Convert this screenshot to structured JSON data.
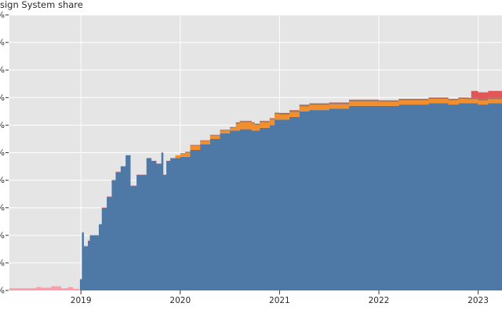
{
  "chart_data": {
    "type": "area",
    "title": "sign System share",
    "xlabel": "",
    "ylabel": "",
    "x_tick_labels": [
      "2019",
      "2020",
      "2021",
      "2022",
      "2023"
    ],
    "x_tick_positions": [
      2019.0,
      2020.0,
      2021.0,
      2022.0,
      2023.0
    ],
    "xlim": [
      2018.28,
      2023.24
    ],
    "ylim": [
      0,
      100
    ],
    "y_unit": "%",
    "grid": true,
    "background": "#e5e5e5",
    "series": [
      {
        "color": "#4e79a7",
        "points": [
          [
            2018.28,
            0
          ],
          [
            2018.97,
            0
          ],
          [
            2018.99,
            4
          ],
          [
            2019.01,
            21
          ],
          [
            2019.03,
            16
          ],
          [
            2019.07,
            18
          ],
          [
            2019.09,
            20
          ],
          [
            2019.14,
            20
          ],
          [
            2019.18,
            24
          ],
          [
            2019.21,
            30
          ],
          [
            2019.26,
            34
          ],
          [
            2019.31,
            40
          ],
          [
            2019.35,
            43
          ],
          [
            2019.4,
            45
          ],
          [
            2019.45,
            49
          ],
          [
            2019.5,
            38
          ],
          [
            2019.56,
            42
          ],
          [
            2019.61,
            42
          ],
          [
            2019.66,
            48
          ],
          [
            2019.71,
            47
          ],
          [
            2019.76,
            46
          ],
          [
            2019.81,
            50
          ],
          [
            2019.83,
            42
          ],
          [
            2019.86,
            47
          ],
          [
            2019.9,
            48
          ],
          [
            2020.0,
            48.5
          ],
          [
            2020.1,
            51
          ],
          [
            2020.2,
            53
          ],
          [
            2020.3,
            55
          ],
          [
            2020.4,
            57
          ],
          [
            2020.5,
            58
          ],
          [
            2020.6,
            58.5
          ],
          [
            2020.72,
            58
          ],
          [
            2020.8,
            59
          ],
          [
            2020.9,
            60
          ],
          [
            2020.95,
            62
          ],
          [
            2021.0,
            62
          ],
          [
            2021.1,
            63
          ],
          [
            2021.2,
            65
          ],
          [
            2021.3,
            65.5
          ],
          [
            2021.4,
            65.5
          ],
          [
            2021.5,
            66
          ],
          [
            2021.6,
            66
          ],
          [
            2021.7,
            67
          ],
          [
            2021.8,
            67
          ],
          [
            2021.9,
            67
          ],
          [
            2022.0,
            67
          ],
          [
            2022.1,
            67
          ],
          [
            2022.2,
            67.5
          ],
          [
            2022.3,
            67.5
          ],
          [
            2022.4,
            67.5
          ],
          [
            2022.5,
            68
          ],
          [
            2022.6,
            68
          ],
          [
            2022.7,
            67.5
          ],
          [
            2022.8,
            68
          ],
          [
            2022.9,
            68
          ],
          [
            2023.0,
            67.5
          ],
          [
            2023.1,
            68
          ],
          [
            2023.24,
            68
          ]
        ]
      },
      {
        "color": "#f28e2b",
        "points": [
          [
            2018.28,
            0
          ],
          [
            2019.9,
            0
          ],
          [
            2019.95,
            1
          ],
          [
            2020.05,
            1.5
          ],
          [
            2020.2,
            1.2
          ],
          [
            2020.4,
            1
          ],
          [
            2020.55,
            1
          ],
          [
            2020.56,
            2.5
          ],
          [
            2020.75,
            2
          ],
          [
            2021.0,
            1.8
          ],
          [
            2021.5,
            1.6
          ],
          [
            2022.0,
            1.5
          ],
          [
            2022.5,
            1.5
          ],
          [
            2022.9,
            1.4
          ],
          [
            2023.24,
            1.3
          ]
        ]
      },
      {
        "color": "#9c755f",
        "points": [
          [
            2018.28,
            0
          ],
          [
            2019.9,
            0
          ],
          [
            2020.0,
            0.3
          ],
          [
            2020.56,
            0.5
          ],
          [
            2021.0,
            0.6
          ],
          [
            2021.5,
            0.6
          ],
          [
            2022.0,
            0.5
          ],
          [
            2022.5,
            0.5
          ],
          [
            2023.24,
            0.5
          ]
        ]
      },
      {
        "color": "#e15759",
        "points": [
          [
            2018.28,
            0
          ],
          [
            2022.92,
            0
          ],
          [
            2022.93,
            2.5
          ],
          [
            2023.24,
            2.5
          ]
        ]
      },
      {
        "color": "#ff9da7",
        "points": [
          [
            2018.28,
            0.8
          ],
          [
            2018.5,
            0.8
          ],
          [
            2018.55,
            1.2
          ],
          [
            2018.6,
            1
          ],
          [
            2018.7,
            1.5
          ],
          [
            2018.8,
            0.8
          ],
          [
            2018.87,
            1.2
          ],
          [
            2018.92,
            0.6
          ],
          [
            2018.98,
            0.3
          ],
          [
            2019.1,
            0.2
          ],
          [
            2019.5,
            0.1
          ],
          [
            2020.0,
            0.1
          ],
          [
            2023.24,
            0.1
          ]
        ]
      }
    ]
  }
}
